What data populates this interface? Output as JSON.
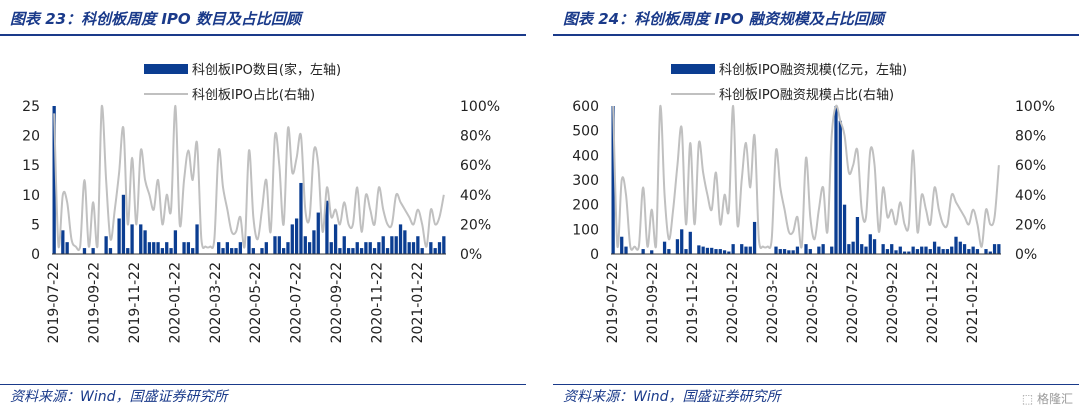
{
  "footer": {
    "source": "资料来源：Wind，国盛证券研究所",
    "watermark": "格隆汇"
  },
  "colors": {
    "bar": "#0b3d91",
    "line": "#c0c0c0",
    "rule": "#1a3a8a"
  },
  "dates": [
    "2019-07-22",
    "2019-09-22",
    "2019-11-22",
    "2020-01-22",
    "2020-03-22",
    "2020-05-22",
    "2020-07-22",
    "2020-09-22",
    "2020-11-22",
    "2021-01-22"
  ],
  "chart_data": [
    {
      "type": "bar",
      "title": "图表 23：科创板周度 IPO 数目及占比回顾",
      "x_tick_labels": [
        "2019-07-22",
        "2019-09-22",
        "2019-11-22",
        "2020-01-22",
        "2020-03-22",
        "2020-05-22",
        "2020-07-22",
        "2020-09-22",
        "2020-11-22",
        "2021-01-22"
      ],
      "y_left": {
        "min": 0,
        "max": 25,
        "ticks": [
          "0",
          "5",
          "10",
          "15",
          "20",
          "25"
        ]
      },
      "y_right": {
        "min": 0,
        "max": 1,
        "ticks": [
          "0%",
          "20%",
          "40%",
          "60%",
          "80%",
          "100%"
        ]
      },
      "legend_position": "top-center",
      "series": [
        {
          "name": "科创板IPO数目(家，左轴)",
          "kind": "bar",
          "axis": "left",
          "values": [
            25,
            0,
            4,
            2,
            0,
            0,
            0,
            1,
            0,
            1,
            0,
            0,
            3,
            1,
            0,
            6,
            10,
            1,
            5,
            0,
            5,
            4,
            2,
            2,
            2,
            1,
            2,
            1,
            4,
            0,
            2,
            2,
            1,
            5,
            0,
            0,
            0,
            0,
            2,
            1,
            2,
            1,
            1,
            2,
            0,
            3,
            1,
            0,
            1,
            2,
            0,
            3,
            3,
            1,
            2,
            5,
            6,
            12,
            3,
            2,
            4,
            7,
            0,
            9,
            2,
            5,
            1,
            3,
            1,
            1,
            2,
            1,
            2,
            2,
            1,
            2,
            3,
            1,
            3,
            3,
            5,
            4,
            2,
            2,
            3,
            1,
            0,
            2,
            1,
            2,
            3
          ]
        },
        {
          "name": "科创板IPO占比(右轴)",
          "kind": "line",
          "axis": "right",
          "values": [
            0.95,
            0.05,
            0.4,
            0.35,
            0.1,
            0.05,
            0.05,
            0.5,
            0.05,
            0.35,
            0.05,
            1.0,
            0.5,
            0.1,
            0.3,
            0.55,
            0.85,
            0.2,
            0.65,
            0.2,
            0.7,
            0.5,
            0.4,
            0.3,
            0.5,
            0.2,
            0.4,
            0.3,
            1.0,
            0.2,
            0.5,
            0.7,
            0.5,
            0.75,
            0.1,
            0.05,
            0.05,
            0.1,
            0.7,
            0.45,
            0.3,
            0.15,
            0.15,
            0.25,
            0.05,
            0.7,
            0.25,
            0.1,
            0.3,
            0.5,
            0.15,
            0.8,
            0.6,
            0.2,
            0.85,
            0.55,
            0.65,
            0.8,
            0.3,
            0.25,
            0.7,
            0.6,
            0.15,
            0.45,
            0.25,
            0.3,
            0.2,
            0.35,
            0.2,
            0.2,
            0.45,
            0.15,
            0.4,
            0.3,
            0.2,
            0.45,
            0.3,
            0.2,
            0.2,
            0.4,
            0.35,
            0.3,
            0.25,
            0.2,
            0.3,
            0.2,
            0.05,
            0.3,
            0.2,
            0.25,
            0.4
          ]
        }
      ]
    },
    {
      "type": "bar",
      "title": "图表 24：科创板周度 IPO 融资规模及占比回顾",
      "x_tick_labels": [
        "2019-07-22",
        "2019-09-22",
        "2019-11-22",
        "2020-01-22",
        "2020-03-22",
        "2020-05-22",
        "2020-07-22",
        "2020-09-22",
        "2020-11-22",
        "2021-01-22"
      ],
      "y_left": {
        "min": 0,
        "max": 600,
        "ticks": [
          "0",
          "100",
          "200",
          "300",
          "400",
          "500",
          "600"
        ]
      },
      "y_right": {
        "min": 0,
        "max": 1,
        "ticks": [
          "0%",
          "20%",
          "40%",
          "60%",
          "80%",
          "100%"
        ]
      },
      "legend_position": "top-center",
      "series": [
        {
          "name": "科创板IPO融资规模(亿元，左轴)",
          "kind": "bar",
          "axis": "left",
          "values": [
            600,
            0,
            70,
            30,
            0,
            0,
            0,
            20,
            0,
            15,
            0,
            0,
            50,
            20,
            0,
            60,
            100,
            20,
            90,
            0,
            35,
            30,
            25,
            25,
            20,
            20,
            15,
            10,
            40,
            0,
            40,
            30,
            30,
            130,
            0,
            0,
            0,
            0,
            30,
            20,
            20,
            15,
            15,
            30,
            0,
            40,
            20,
            0,
            30,
            40,
            0,
            30,
            600,
            540,
            200,
            40,
            50,
            150,
            40,
            30,
            80,
            60,
            0,
            40,
            20,
            40,
            15,
            30,
            10,
            10,
            30,
            20,
            30,
            30,
            20,
            50,
            30,
            20,
            20,
            30,
            70,
            50,
            40,
            20,
            30,
            20,
            0,
            20,
            10,
            40,
            40
          ]
        },
        {
          "name": "科创板IPO融资规模占比(右轴)",
          "kind": "line",
          "axis": "right",
          "values": [
            1.0,
            0.05,
            0.5,
            0.4,
            0.05,
            0.05,
            0.05,
            0.45,
            0.05,
            0.3,
            0.05,
            1.0,
            0.4,
            0.1,
            0.3,
            0.6,
            0.85,
            0.2,
            0.75,
            0.2,
            0.75,
            0.55,
            0.4,
            0.3,
            0.55,
            0.2,
            0.4,
            0.3,
            1.0,
            0.2,
            0.5,
            0.75,
            0.45,
            0.8,
            0.1,
            0.05,
            0.05,
            0.1,
            0.7,
            0.45,
            0.3,
            0.15,
            0.15,
            0.25,
            0.05,
            0.65,
            0.25,
            0.1,
            0.3,
            0.45,
            0.15,
            0.8,
            1.0,
            0.9,
            0.8,
            0.55,
            0.6,
            0.7,
            0.3,
            0.25,
            0.7,
            0.6,
            0.15,
            0.45,
            0.25,
            0.3,
            0.2,
            0.35,
            0.2,
            0.2,
            0.7,
            0.15,
            0.4,
            0.3,
            0.2,
            0.45,
            0.3,
            0.2,
            0.2,
            0.4,
            0.35,
            0.3,
            0.25,
            0.2,
            0.3,
            0.2,
            0.05,
            0.3,
            0.2,
            0.25,
            0.6
          ]
        }
      ]
    }
  ]
}
